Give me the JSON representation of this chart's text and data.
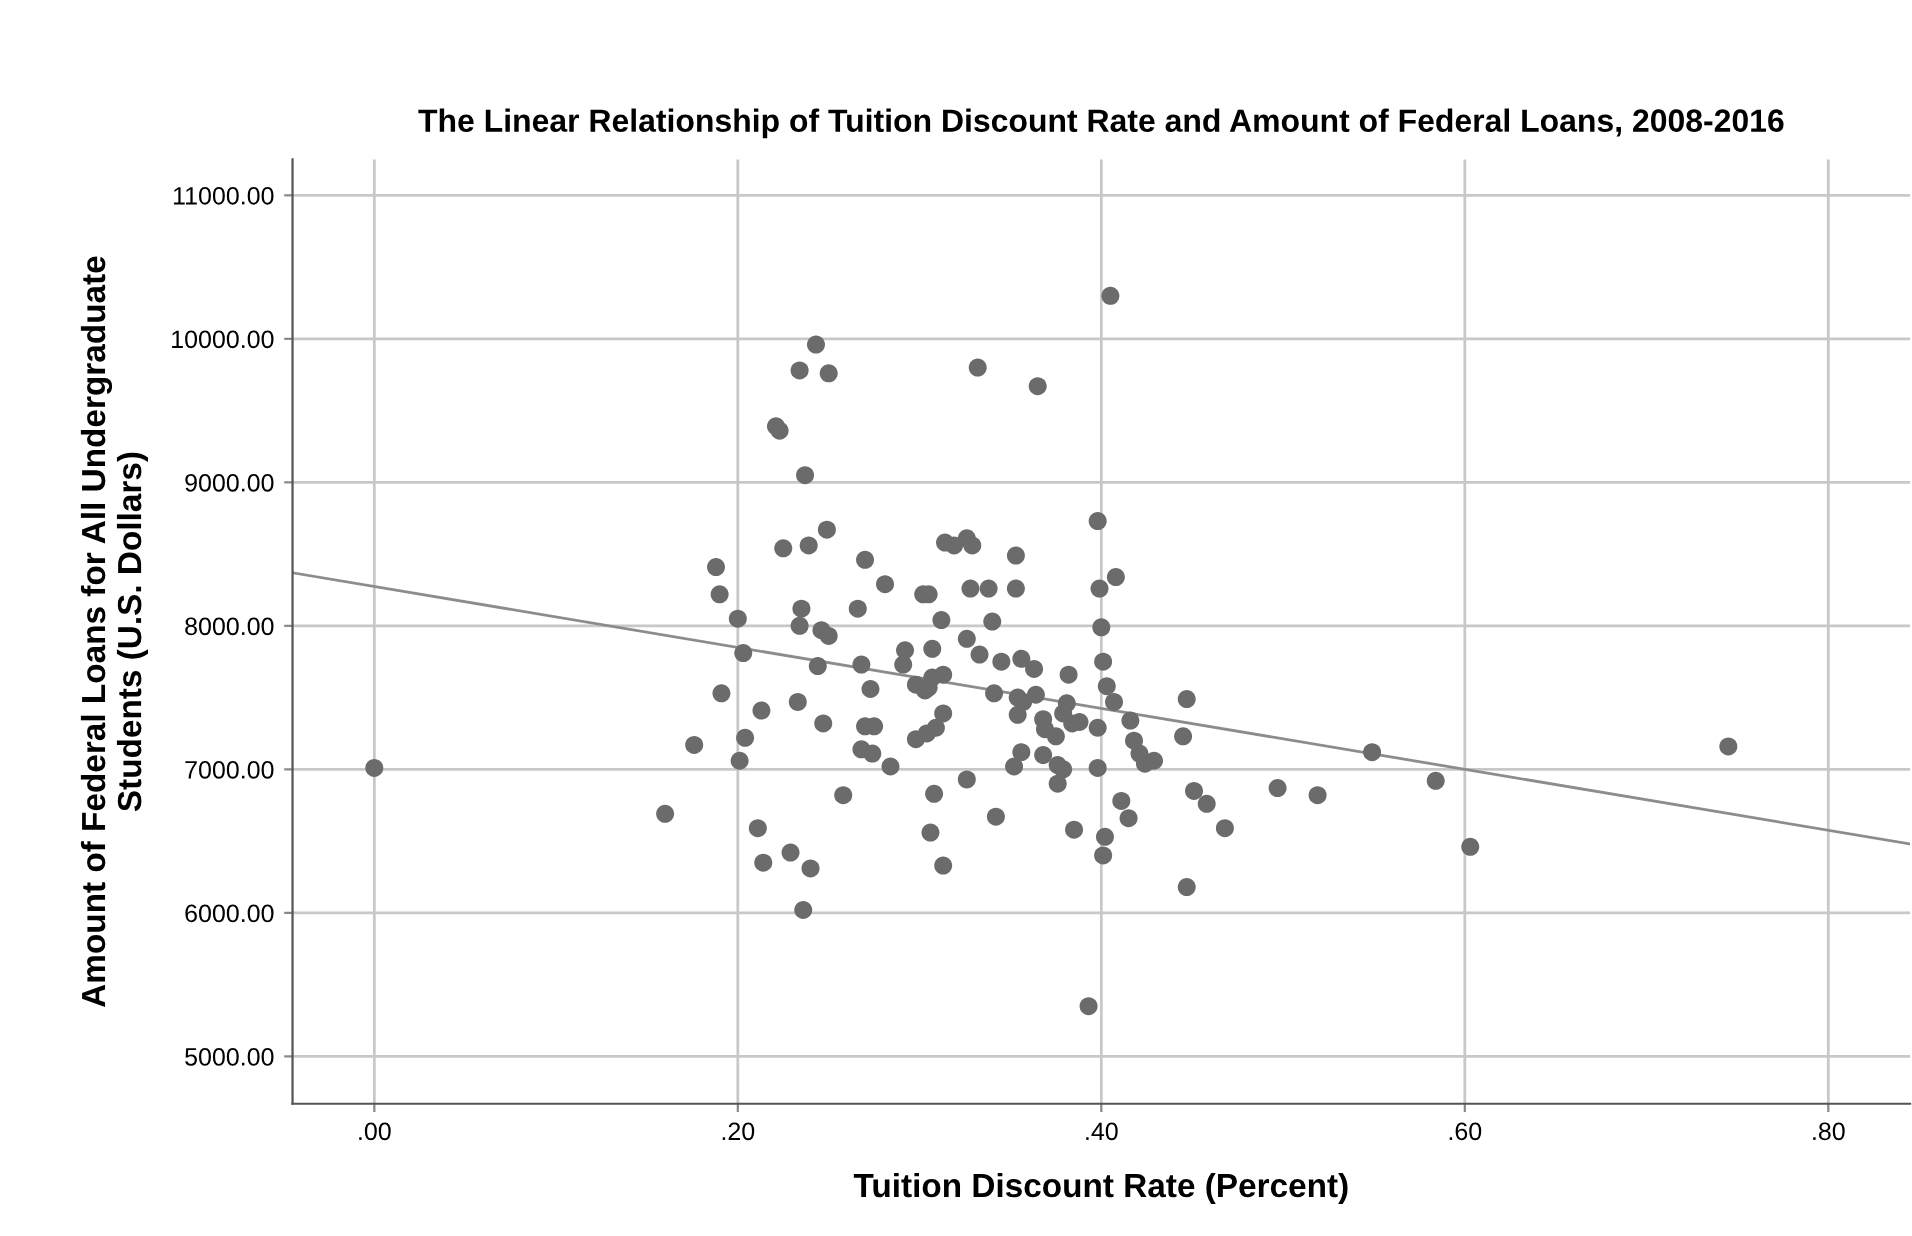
{
  "chart_data": {
    "type": "scatter",
    "title": "The Linear Relationship of Tuition Discount Rate and Amount of Federal Loans, 2008-2016",
    "xlabel": "Tuition Discount Rate (Percent)",
    "ylabel": "Amount of Federal Loans for All Undergraduate\nStudents (U.S. Dollars)",
    "xlim": [
      -0.045,
      0.845
    ],
    "ylim": [
      4670,
      11250
    ],
    "xticks": [
      {
        "value": 0,
        "label": ".00"
      },
      {
        "value": 0.2,
        "label": ".20"
      },
      {
        "value": 0.4,
        "label": ".40"
      },
      {
        "value": 0.6,
        "label": ".60"
      },
      {
        "value": 0.8,
        "label": ".80"
      }
    ],
    "yticks": [
      {
        "value": 5000,
        "label": "5000.00"
      },
      {
        "value": 6000,
        "label": "6000.00"
      },
      {
        "value": 7000,
        "label": "7000.00"
      },
      {
        "value": 8000,
        "label": "8000.00"
      },
      {
        "value": 9000,
        "label": "9000.00"
      },
      {
        "value": 10000,
        "label": "10000.00"
      },
      {
        "value": 11000,
        "label": "11000.00"
      }
    ],
    "grid": true,
    "series": [
      {
        "color": "#6b6b6b",
        "marker": "circle",
        "x": [
          0.243,
          0.234,
          0.25,
          0.221,
          0.223,
          0.237,
          0.188,
          0.225,
          0.239,
          0.249,
          0.27,
          0.281,
          0.19,
          0.2,
          0.235,
          0.266,
          0.234,
          0.246,
          0.25,
          0.203,
          0.244,
          0.268,
          0.292,
          0.291,
          0.302,
          0.298,
          0.273,
          0.191,
          0.233,
          0.213,
          0.247,
          0.27,
          0.275,
          0.298,
          0.204,
          0.176,
          0.268,
          0.274,
          0.201,
          0.284,
          0.0,
          0.258,
          0.16,
          0.211,
          0.229,
          0.214,
          0.24,
          0.236,
          0.405,
          0.332,
          0.365,
          0.398,
          0.314,
          0.319,
          0.326,
          0.329,
          0.353,
          0.408,
          0.305,
          0.328,
          0.338,
          0.353,
          0.399,
          0.312,
          0.34,
          0.4,
          0.326,
          0.307,
          0.333,
          0.345,
          0.356,
          0.363,
          0.382,
          0.401,
          0.313,
          0.307,
          0.403,
          0.407,
          0.303,
          0.305,
          0.341,
          0.354,
          0.357,
          0.364,
          0.354,
          0.381,
          0.379,
          0.368,
          0.369,
          0.375,
          0.384,
          0.388,
          0.398,
          0.313,
          0.309,
          0.304,
          0.352,
          0.356,
          0.368,
          0.376,
          0.379,
          0.376,
          0.398,
          0.326,
          0.308,
          0.416,
          0.418,
          0.421,
          0.424,
          0.429,
          0.447,
          0.445,
          0.451,
          0.458,
          0.468,
          0.411,
          0.415,
          0.342,
          0.306,
          0.313,
          0.385,
          0.402,
          0.401,
          0.447,
          0.393,
          0.497,
          0.519,
          0.549,
          0.584,
          0.603,
          0.745
        ],
        "values": [
          9960,
          9780,
          9760,
          9390,
          9360,
          9050,
          8410,
          8540,
          8560,
          8670,
          8460,
          8290,
          8220,
          8050,
          8120,
          8120,
          8000,
          7970,
          7930,
          7810,
          7720,
          7730,
          7830,
          7730,
          8220,
          7590,
          7560,
          7530,
          7470,
          7410,
          7320,
          7300,
          7300,
          7210,
          7220,
          7170,
          7140,
          7110,
          7060,
          7020,
          7010,
          6820,
          6690,
          6590,
          6420,
          6350,
          6310,
          6020,
          10300,
          9800,
          9670,
          8730,
          8580,
          8560,
          8610,
          8560,
          8490,
          8340,
          8220,
          8260,
          8260,
          8260,
          8260,
          8040,
          8030,
          7990,
          7910,
          7840,
          7800,
          7750,
          7770,
          7700,
          7660,
          7750,
          7660,
          7640,
          7580,
          7470,
          7550,
          7570,
          7530,
          7500,
          7470,
          7520,
          7380,
          7460,
          7390,
          7350,
          7280,
          7230,
          7320,
          7330,
          7290,
          7390,
          7290,
          7250,
          7020,
          7120,
          7100,
          7030,
          7000,
          6900,
          7010,
          6930,
          6830,
          7340,
          7200,
          7110,
          7040,
          7060,
          7490,
          7230,
          6850,
          6760,
          6590,
          6780,
          6660,
          6670,
          6560,
          6330,
          6580,
          6530,
          6400,
          6180,
          5350,
          6870,
          6820,
          7120,
          6920,
          6460,
          7160
        ]
      },
      {
        "type": "line",
        "marker": "none",
        "color": "#8c8c8c",
        "x": [
          -0.045,
          0.845
        ],
        "values": [
          8370,
          6480
        ]
      }
    ]
  }
}
